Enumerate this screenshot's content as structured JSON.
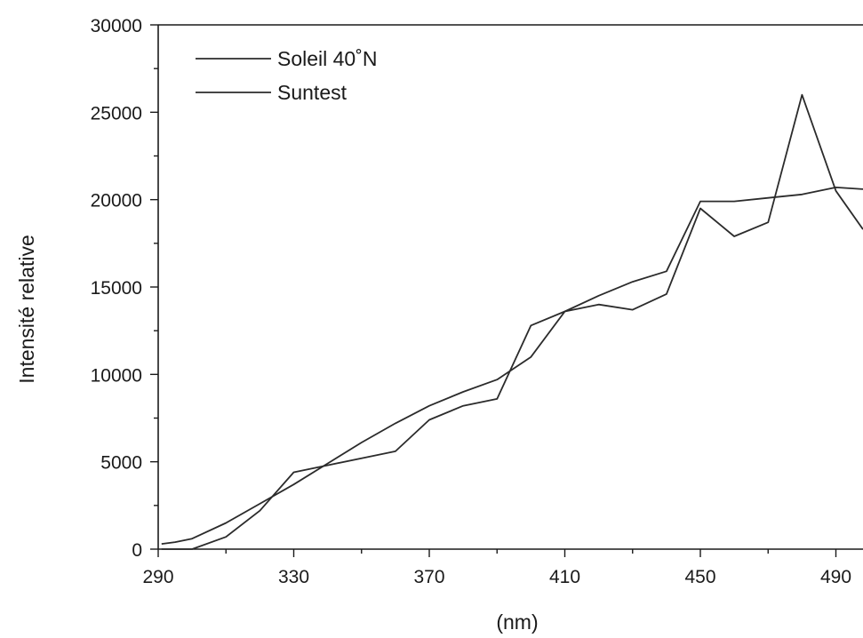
{
  "chart_data": {
    "type": "line",
    "title": "",
    "xlabel": "(nm)",
    "ylabel": "Intensité relative",
    "xlim": [
      290,
      498
    ],
    "ylim": [
      0,
      30000
    ],
    "x_ticks": [
      290,
      330,
      370,
      410,
      450,
      490
    ],
    "x_tick_labels": [
      "290",
      "330",
      "370",
      "410",
      "450",
      "490"
    ],
    "x_minor_ticks": [
      310,
      350,
      390,
      430,
      470
    ],
    "y_ticks": [
      0,
      5000,
      10000,
      15000,
      20000,
      25000,
      30000
    ],
    "y_tick_labels": [
      "0",
      "5000",
      "10000",
      "15000",
      "20000",
      "25000",
      "30000"
    ],
    "y_minor_ticks": [
      2500,
      7500,
      12500,
      17500,
      22500,
      27500
    ],
    "grid": false,
    "legend_position": "top-left",
    "series": [
      {
        "name": "Soleil 40˚N",
        "x": [
          291,
          295,
          300,
          310,
          320,
          330,
          340,
          350,
          360,
          370,
          380,
          390,
          400,
          410,
          420,
          430,
          440,
          450,
          460,
          470,
          480,
          490,
          498
        ],
        "values": [
          0,
          0,
          0,
          700,
          2200,
          4400,
          4800,
          5200,
          5600,
          7400,
          8200,
          8600,
          12800,
          13600,
          14000,
          13700,
          14600,
          19500,
          17900,
          18700,
          26000,
          20500,
          18300
        ]
      },
      {
        "name": "Suntest",
        "x": [
          291,
          295,
          300,
          310,
          320,
          330,
          340,
          350,
          360,
          370,
          380,
          390,
          400,
          410,
          420,
          430,
          440,
          450,
          460,
          470,
          480,
          490,
          498
        ],
        "values": [
          300,
          400,
          600,
          1500,
          2600,
          3700,
          4900,
          6100,
          7200,
          8200,
          9000,
          9700,
          11000,
          13600,
          14500,
          15300,
          15900,
          19900,
          19900,
          20100,
          20300,
          20700,
          20600
        ]
      }
    ]
  }
}
